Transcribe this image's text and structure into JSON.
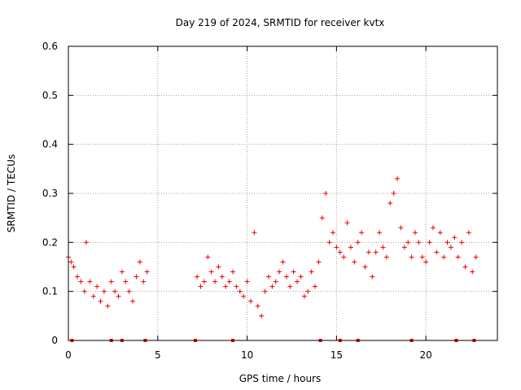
{
  "chart_data": {
    "type": "scatter",
    "title": "Day 219 of 2024, SRMTID for receiver kvtx",
    "xlabel": "GPS time / hours",
    "ylabel": "SRMTID / TECUs",
    "xlim": [
      0,
      24
    ],
    "ylim": [
      0,
      0.6
    ],
    "xticks": [
      0,
      5,
      10,
      15,
      20
    ],
    "xtick_labels": [
      "0",
      "5",
      "10",
      "15",
      "20"
    ],
    "yticks": [
      0,
      0.1,
      0.2,
      0.3,
      0.4,
      0.5,
      0.6
    ],
    "ytick_labels": [
      "0",
      "0.1",
      "0.2",
      "0.3",
      "0.4",
      "0.5",
      "0.6"
    ],
    "grid": true,
    "marker": "+",
    "color": "#ee0000",
    "series": [
      {
        "name": "SRMTID",
        "x": [
          0.0,
          0.15,
          0.3,
          0.5,
          0.7,
          0.9,
          1.0,
          1.2,
          1.4,
          1.6,
          1.8,
          2.0,
          2.2,
          2.4,
          2.6,
          2.8,
          3.0,
          3.2,
          3.4,
          3.6,
          3.8,
          4.0,
          4.2,
          4.4,
          7.2,
          7.4,
          7.6,
          7.8,
          8.0,
          8.2,
          8.4,
          8.6,
          8.8,
          9.0,
          9.2,
          9.4,
          9.6,
          9.8,
          10.0,
          10.2,
          10.4,
          10.6,
          10.8,
          11.0,
          11.2,
          11.4,
          11.6,
          11.8,
          12.0,
          12.2,
          12.4,
          12.6,
          12.8,
          13.0,
          13.2,
          13.4,
          13.6,
          13.8,
          14.0,
          14.2,
          14.4,
          14.6,
          14.8,
          15.0,
          15.2,
          15.4,
          15.6,
          15.8,
          16.0,
          16.2,
          16.4,
          16.6,
          16.8,
          17.0,
          17.2,
          17.4,
          17.6,
          17.8,
          18.0,
          18.2,
          18.4,
          18.6,
          18.8,
          19.0,
          19.2,
          19.4,
          19.6,
          19.8,
          20.0,
          20.2,
          20.4,
          20.6,
          20.8,
          21.0,
          21.2,
          21.4,
          21.6,
          21.8,
          22.0,
          22.2,
          22.4,
          22.6,
          22.8
        ],
        "y": [
          0.17,
          0.16,
          0.15,
          0.13,
          0.12,
          0.1,
          0.2,
          0.12,
          0.09,
          0.11,
          0.08,
          0.1,
          0.07,
          0.12,
          0.1,
          0.09,
          0.14,
          0.12,
          0.1,
          0.08,
          0.13,
          0.16,
          0.12,
          0.14,
          0.13,
          0.11,
          0.12,
          0.17,
          0.14,
          0.12,
          0.15,
          0.13,
          0.11,
          0.12,
          0.14,
          0.11,
          0.1,
          0.09,
          0.12,
          0.08,
          0.22,
          0.07,
          0.05,
          0.1,
          0.13,
          0.11,
          0.12,
          0.14,
          0.16,
          0.13,
          0.11,
          0.14,
          0.12,
          0.13,
          0.09,
          0.1,
          0.14,
          0.11,
          0.16,
          0.25,
          0.3,
          0.2,
          0.22,
          0.19,
          0.18,
          0.17,
          0.24,
          0.19,
          0.16,
          0.2,
          0.22,
          0.15,
          0.18,
          0.13,
          0.18,
          0.22,
          0.19,
          0.17,
          0.28,
          0.3,
          0.33,
          0.23,
          0.19,
          0.2,
          0.17,
          0.22,
          0.2,
          0.17,
          0.16,
          0.2,
          0.23,
          0.18,
          0.22,
          0.17,
          0.2,
          0.19,
          0.21,
          0.17,
          0.2,
          0.15,
          0.22,
          0.14,
          0.17
        ]
      }
    ],
    "zero_markers_x": [
      0.2,
      2.4,
      3.0,
      4.3,
      7.1,
      9.2,
      14.1,
      15.2,
      16.2,
      19.2,
      21.7,
      22.7
    ]
  }
}
